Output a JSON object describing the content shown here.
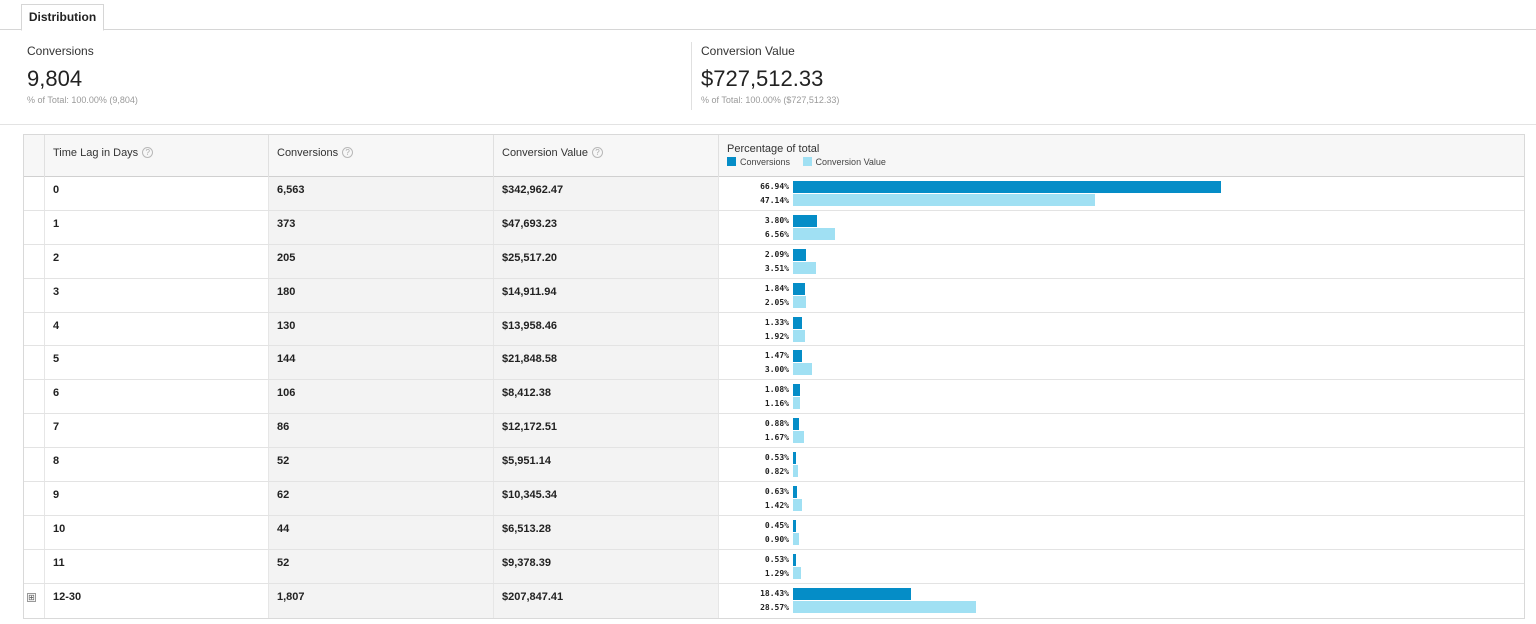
{
  "tabs": [
    {
      "label": "Distribution"
    }
  ],
  "summary": {
    "conversions": {
      "label": "Conversions",
      "value": "9,804",
      "sub": "% of Total: 100.00% (9,804)"
    },
    "conversion_value": {
      "label": "Conversion Value",
      "value": "$727,512.33",
      "sub": "% of Total: 100.00% ($727,512.33)"
    }
  },
  "table": {
    "headers": {
      "time_lag": "Time Lag in Days",
      "conversions": "Conversions",
      "conversion_value": "Conversion Value",
      "percentage": "Percentage of total",
      "help_icon": "?"
    },
    "legend": {
      "conversions": "Conversions",
      "conversion_value": "Conversion Value"
    },
    "colors": {
      "conversions": "#058dc7",
      "conversion_value": "#a0e0f3"
    },
    "expand_icon": "⊞",
    "rows": [
      {
        "lag": "0",
        "conversions": "6,563",
        "value": "$342,962.47",
        "conv_pct": "66.94%",
        "val_pct": "47.14%"
      },
      {
        "lag": "1",
        "conversions": "373",
        "value": "$47,693.23",
        "conv_pct": "3.80%",
        "val_pct": "6.56%"
      },
      {
        "lag": "2",
        "conversions": "205",
        "value": "$25,517.20",
        "conv_pct": "2.09%",
        "val_pct": "3.51%"
      },
      {
        "lag": "3",
        "conversions": "180",
        "value": "$14,911.94",
        "conv_pct": "1.84%",
        "val_pct": "2.05%"
      },
      {
        "lag": "4",
        "conversions": "130",
        "value": "$13,958.46",
        "conv_pct": "1.33%",
        "val_pct": "1.92%"
      },
      {
        "lag": "5",
        "conversions": "144",
        "value": "$21,848.58",
        "conv_pct": "1.47%",
        "val_pct": "3.00%"
      },
      {
        "lag": "6",
        "conversions": "106",
        "value": "$8,412.38",
        "conv_pct": "1.08%",
        "val_pct": "1.16%"
      },
      {
        "lag": "7",
        "conversions": "86",
        "value": "$12,172.51",
        "conv_pct": "0.88%",
        "val_pct": "1.67%"
      },
      {
        "lag": "8",
        "conversions": "52",
        "value": "$5,951.14",
        "conv_pct": "0.53%",
        "val_pct": "0.82%"
      },
      {
        "lag": "9",
        "conversions": "62",
        "value": "$10,345.34",
        "conv_pct": "0.63%",
        "val_pct": "1.42%"
      },
      {
        "lag": "10",
        "conversions": "44",
        "value": "$6,513.28",
        "conv_pct": "0.45%",
        "val_pct": "0.90%"
      },
      {
        "lag": "11",
        "conversions": "52",
        "value": "$9,378.39",
        "conv_pct": "0.53%",
        "val_pct": "1.29%"
      },
      {
        "lag": "12-30",
        "conversions": "1,807",
        "value": "$207,847.41",
        "conv_pct": "18.43%",
        "val_pct": "28.57%",
        "expandable": true
      }
    ]
  }
}
